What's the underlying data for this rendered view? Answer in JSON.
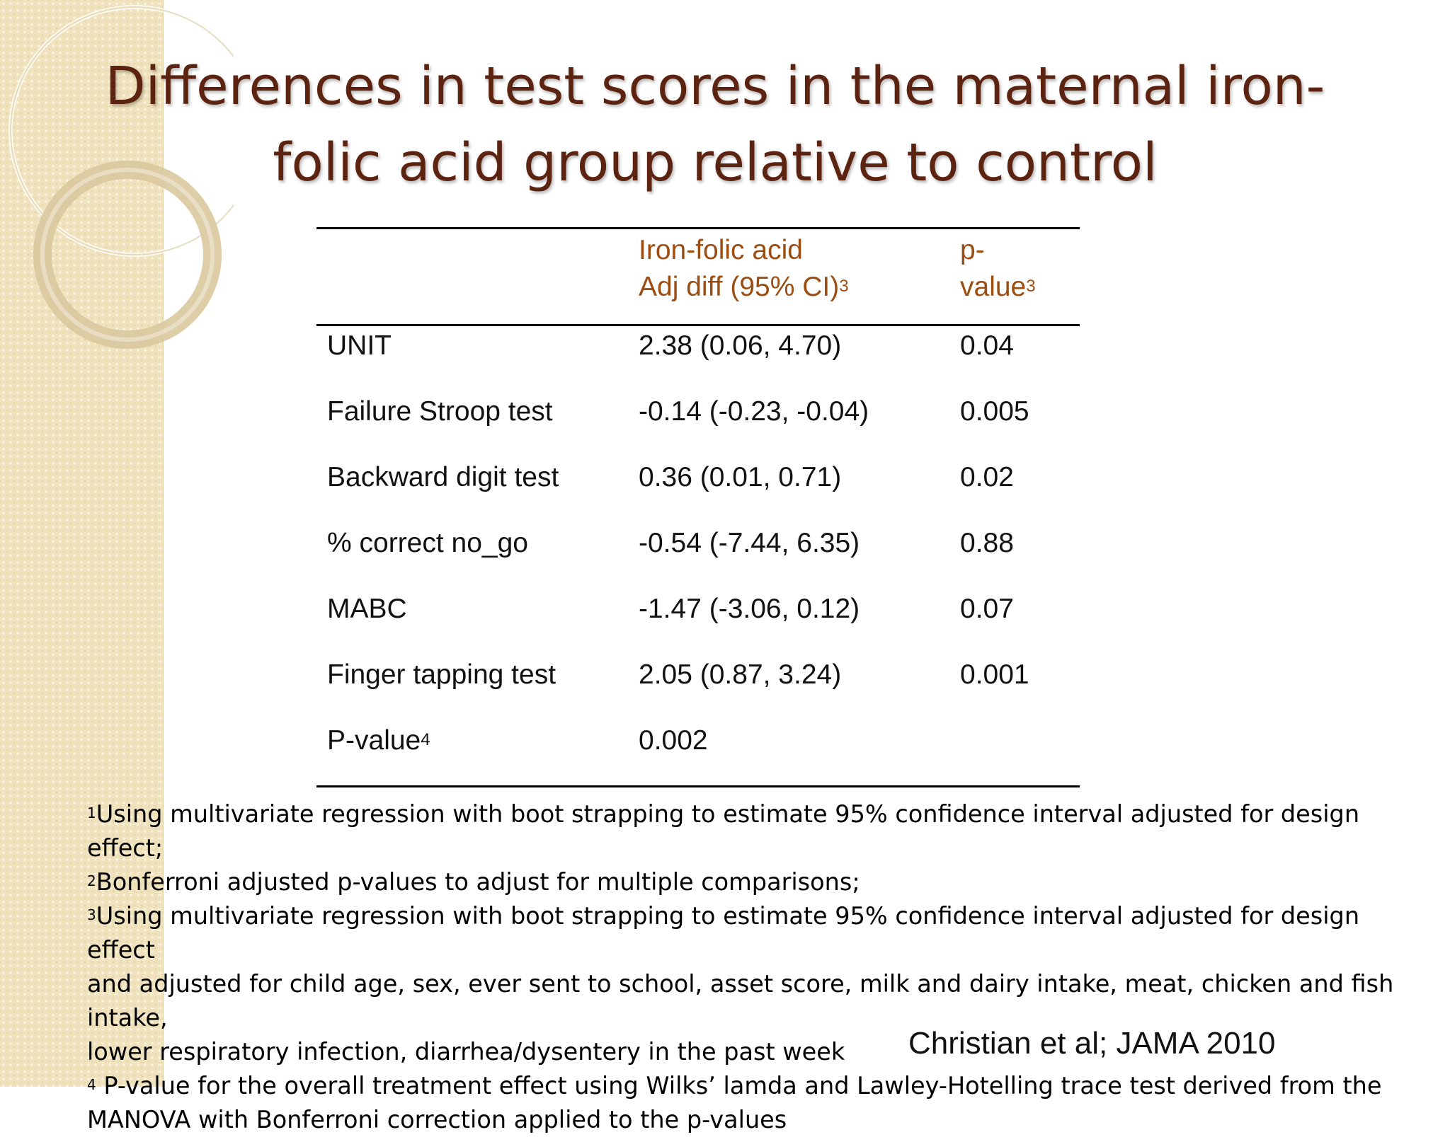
{
  "title_line1": "Differences in test scores in the maternal iron-",
  "title_line2": "folic acid group relative to control",
  "table": {
    "header": {
      "col2_line1": "Iron-folic acid",
      "col2_line2": "Adj diff (95% CI)",
      "col2_sup": "3",
      "col3_line1": "p-",
      "col3_line2": "value",
      "col3_sup": "3"
    },
    "rows": [
      {
        "label": "UNIT",
        "diff": "2.38 (0.06, 4.70)",
        "p": "0.04"
      },
      {
        "label": "Failure Stroop test",
        "diff": "-0.14 (-0.23, -0.04)",
        "p": "0.005"
      },
      {
        "label": "Backward digit test",
        "diff": "0.36 (0.01, 0.71)",
        "p": "0.02"
      },
      {
        "label": "% correct no_go",
        "diff": "-0.54 (-7.44, 6.35)",
        "p": "0.88"
      },
      {
        "label": "MABC",
        "diff": "-1.47 (-3.06, 0.12)",
        "p": "0.07"
      },
      {
        "label": "Finger tapping test",
        "diff": "2.05 (0.87, 3.24)",
        "p": "0.001"
      },
      {
        "label": "P-value",
        "label_sup": "4",
        "diff": "0.002",
        "p": ""
      }
    ]
  },
  "footnotes": {
    "n1_sup": "1",
    "n1": "Using multivariate regression with boot strapping to estimate 95% confidence interval adjusted for design effect;",
    "n2_sup": "2",
    "n2": "Bonferroni adjusted p-values to adjust for multiple comparisons;",
    "n3_sup": "3",
    "n3_line1": "Using multivariate regression with boot strapping to estimate 95% confidence interval adjusted for design effect",
    "n3_line2": "and adjusted for child age, sex, ever sent to school, asset score, milk and dairy intake, meat, chicken and fish intake,",
    "n3_line3": "lower respiratory infection, diarrhea/dysentery in the past week",
    "n4_sup": "4",
    "n4_line1": " P-value for the overall treatment effect using Wilks’ lamda and Lawley-Hotelling trace test derived from the",
    "n4_line2": "MANOVA with Bonferroni correction applied to the p-values"
  },
  "citation": "Christian et al; JAMA 2010",
  "colors": {
    "title": "#5c2410",
    "header": "#9c4d12",
    "band": "#efe2bd"
  }
}
